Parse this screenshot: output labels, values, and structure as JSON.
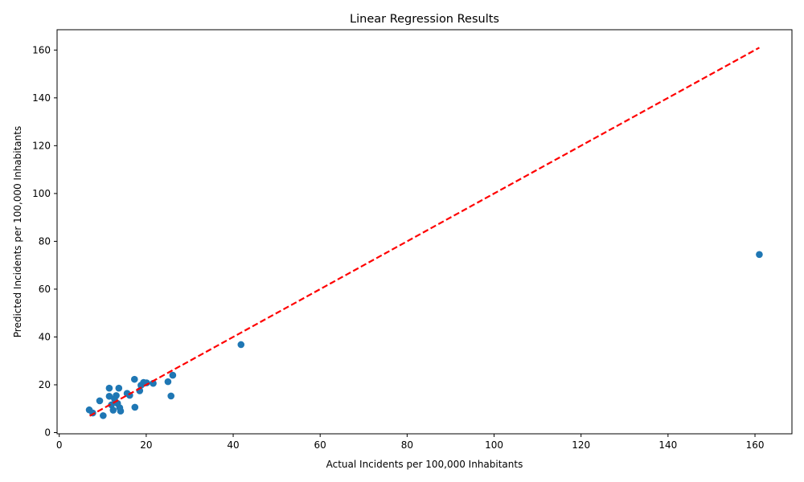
{
  "chart_data": {
    "type": "scatter",
    "title": "Linear Regression Results",
    "xlabel": "Actual Incidents per 100,000 Inhabitants",
    "ylabel": "Predicted Incidents per 100,000 Inhabitants",
    "xlim": [
      -0.5,
      168.5
    ],
    "ylim": [
      -0.5,
      168.5
    ],
    "xticks": [
      0,
      20,
      40,
      60,
      80,
      100,
      120,
      140,
      160
    ],
    "yticks": [
      0,
      20,
      40,
      60,
      80,
      100,
      120,
      140,
      160
    ],
    "grid": false,
    "point_color": "#1f77b4",
    "line_color": "#ff0000",
    "reference_line": {
      "x": [
        7.0,
        161.0
      ],
      "y": [
        7.0,
        161.0
      ],
      "style": "dashed"
    },
    "points": [
      {
        "x": 161.0,
        "y": 74.5
      },
      {
        "x": 41.8,
        "y": 36.8
      },
      {
        "x": 26.1,
        "y": 24.0
      },
      {
        "x": 25.7,
        "y": 15.3
      },
      {
        "x": 25.0,
        "y": 21.3
      },
      {
        "x": 21.6,
        "y": 20.6
      },
      {
        "x": 20.1,
        "y": 20.8
      },
      {
        "x": 19.4,
        "y": 21.0
      },
      {
        "x": 18.8,
        "y": 19.8
      },
      {
        "x": 18.5,
        "y": 17.5
      },
      {
        "x": 17.3,
        "y": 22.3
      },
      {
        "x": 17.4,
        "y": 10.6
      },
      {
        "x": 16.2,
        "y": 15.6
      },
      {
        "x": 15.6,
        "y": 16.4
      },
      {
        "x": 14.1,
        "y": 9.0
      },
      {
        "x": 13.9,
        "y": 10.4
      },
      {
        "x": 13.7,
        "y": 18.6
      },
      {
        "x": 13.4,
        "y": 12.2
      },
      {
        "x": 13.1,
        "y": 15.5
      },
      {
        "x": 12.7,
        "y": 14.1
      },
      {
        "x": 12.4,
        "y": 9.4
      },
      {
        "x": 12.0,
        "y": 11.6
      },
      {
        "x": 11.5,
        "y": 18.6
      },
      {
        "x": 11.5,
        "y": 15.2
      },
      {
        "x": 9.3,
        "y": 13.3
      },
      {
        "x": 10.1,
        "y": 7.1
      },
      {
        "x": 7.7,
        "y": 8.2
      },
      {
        "x": 6.9,
        "y": 9.5
      }
    ]
  }
}
